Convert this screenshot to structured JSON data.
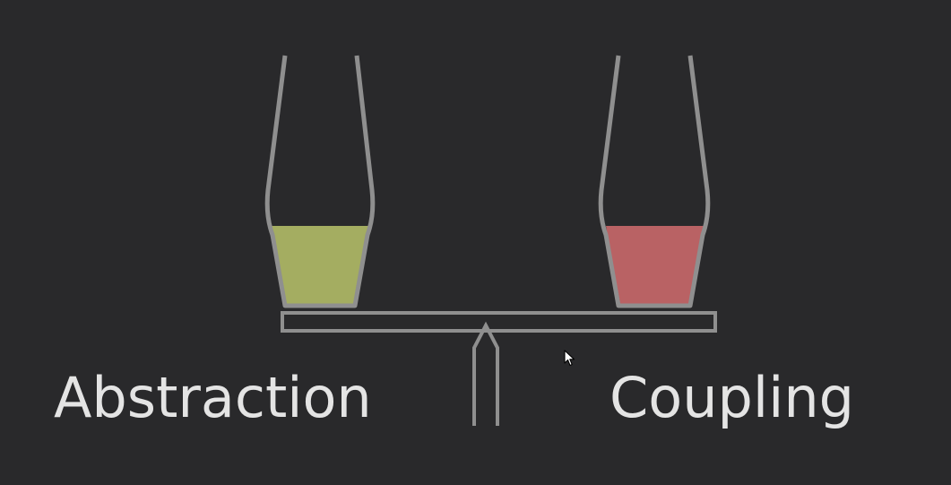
{
  "labels": {
    "left": "Abstraction",
    "right": "Coupling"
  },
  "colors": {
    "background": "#29292b",
    "outline": "#8f8f8f",
    "left_fill": "#a4ad61",
    "right_fill": "#b96264",
    "text": "#e4e4e4"
  },
  "icons": {
    "pointer": "mouse-pointer-icon"
  }
}
